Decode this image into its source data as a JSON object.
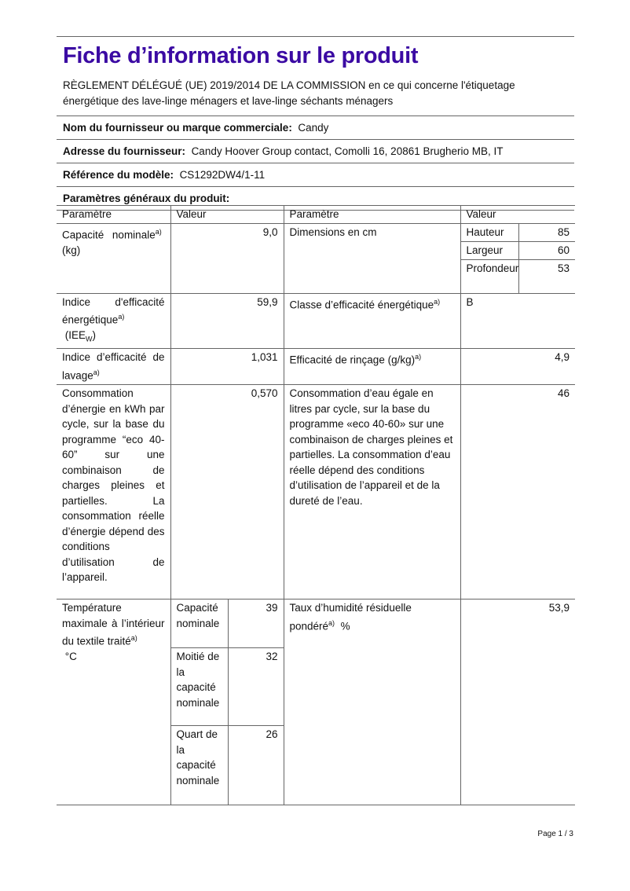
{
  "title": "Fiche d’information sur le produit",
  "regulation": "RÈGLEMENT DÉLÉGUÉ (UE) 2019/2014 DE LA COMMISSION en ce qui concerne l'étiquetage énergétique des lave-linge ménagers et lave-linge séchants ménagers",
  "supplier": {
    "label": "Nom du fournisseur ou marque commerciale:",
    "value": "Candy"
  },
  "address": {
    "label": "Adresse du fournisseur:",
    "value": "Candy Hoover Group contact, Comolli 16, 20861 Brugherio MB, IT"
  },
  "model": {
    "label": "Référence du modèle:",
    "value": "CS1292DW4/1-11"
  },
  "section_title": "Paramètres généraux du produit:",
  "table": {
    "headers": [
      "Paramètre",
      "Valeur",
      "Paramètre",
      "Valeur"
    ],
    "capacity": {
      "label": "Capacité nominale",
      "sup": "a)",
      "unit": "(kg)",
      "value": "9,0"
    },
    "dimensions": {
      "label": "Dimensions en cm",
      "items": [
        {
          "label": "Hauteur",
          "value": "85"
        },
        {
          "label": "Largeur",
          "value": "60"
        },
        {
          "label": "Profondeur",
          "value": "53"
        }
      ]
    },
    "iee": {
      "label": "Indice d'efficacité énergétique",
      "sup": "a)",
      "unit": "(IEE",
      "unit_sub": "W",
      "unit_close": ")",
      "value": "59,9"
    },
    "energy_class": {
      "label": "Classe d’efficacité énergétique",
      "sup": "a)",
      "value": "B"
    },
    "washing": {
      "label": "Indice d’efficacité de lavage",
      "sup": "a)",
      "value": "1,031"
    },
    "rinsing": {
      "label": "Efficacité de rinçage (g/kg)",
      "sup": "a)",
      "value": "4,9"
    },
    "energy_consumption": {
      "label": "Consommation d’énergie en kWh par cycle, sur la base du programme “eco 40-60” sur une combinaison de charges pleines et partielles. La consommation réelle d’énergie dépend des conditions d’utilisation de l’appareil.",
      "value": "0,570"
    },
    "water_consumption": {
      "label": "Consommation d’eau égale en litres par cycle, sur la base du programme «eco 40-60» sur une combinaison de charges pleines et partielles. La consommation d’eau réelle dépend des conditions d’utilisation de l’appareil et de la dureté de l’eau.",
      "value": "46"
    },
    "temperature": {
      "label": "Température maximale à l’intérieur du textile traité",
      "sup": "a)",
      "unit": "°C",
      "items": [
        {
          "label": "Capacité nominale",
          "value": "39"
        },
        {
          "label": "Moitié de la capacité nominale",
          "value": "32"
        },
        {
          "label": "Quart de la capacité nominale",
          "value": "26"
        }
      ]
    },
    "moisture": {
      "label": "Taux d’humidité résiduelle pondéré",
      "sup": "a)",
      "unit": "%",
      "value": "53,9"
    }
  },
  "page_number": "Page 1 / 3"
}
